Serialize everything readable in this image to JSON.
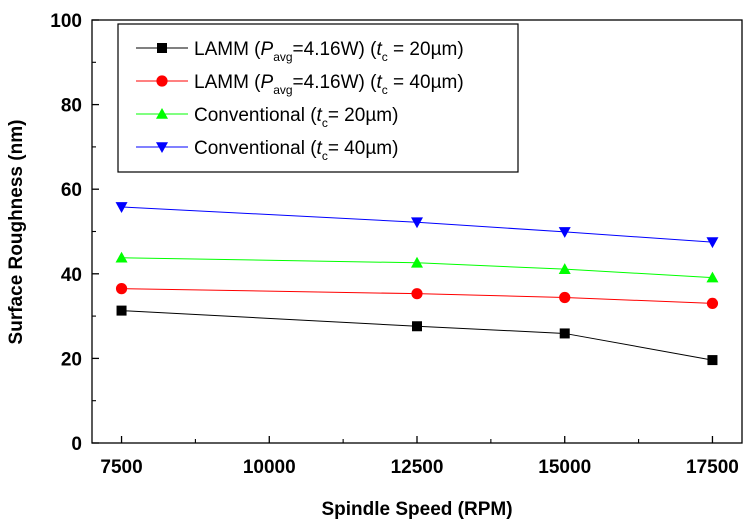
{
  "chart_data": {
    "type": "line",
    "xlabel": "Spindle Speed (RPM)",
    "ylabel": "Surface Roughness (nm)",
    "xlim": [
      7000,
      18000
    ],
    "ylim": [
      0,
      100
    ],
    "x_ticks": [
      7500,
      10000,
      12500,
      15000,
      17500
    ],
    "y_ticks": [
      0,
      20,
      40,
      60,
      80,
      100
    ],
    "x_tick_labels": [
      "7500",
      "10000",
      "12500",
      "15000",
      "17500"
    ],
    "y_tick_labels": [
      "0",
      "20",
      "40",
      "60",
      "80",
      "100"
    ],
    "x": [
      7500,
      12500,
      15000,
      17500
    ],
    "legend_position": "top-left",
    "series": [
      {
        "key": "lamm20",
        "legend": [
          "LAMM (",
          "P",
          "avg",
          "=4.16W) (",
          "t",
          "c",
          " = 20µm)"
        ],
        "color": "#000000",
        "marker": "square",
        "values": [
          31.3,
          27.6,
          25.9,
          19.6
        ]
      },
      {
        "key": "lamm40",
        "legend": [
          "LAMM (",
          "P",
          "avg",
          "=4.16W) (",
          "t",
          "c",
          " = 40µm)"
        ],
        "color": "#ff0000",
        "marker": "circle",
        "values": [
          36.5,
          35.3,
          34.4,
          33.0
        ]
      },
      {
        "key": "conv20",
        "legend": [
          "Conventional (",
          "t",
          "c",
          "= 20µm)"
        ],
        "color": "#00ff00",
        "marker": "triangle-up",
        "values": [
          43.8,
          42.6,
          41.1,
          39.1
        ]
      },
      {
        "key": "conv40",
        "legend": [
          "Conventional (",
          "t",
          "c",
          "= 40µm)"
        ],
        "color": "#0000ff",
        "marker": "triangle-down",
        "values": [
          55.8,
          52.2,
          49.9,
          47.5
        ]
      }
    ]
  }
}
